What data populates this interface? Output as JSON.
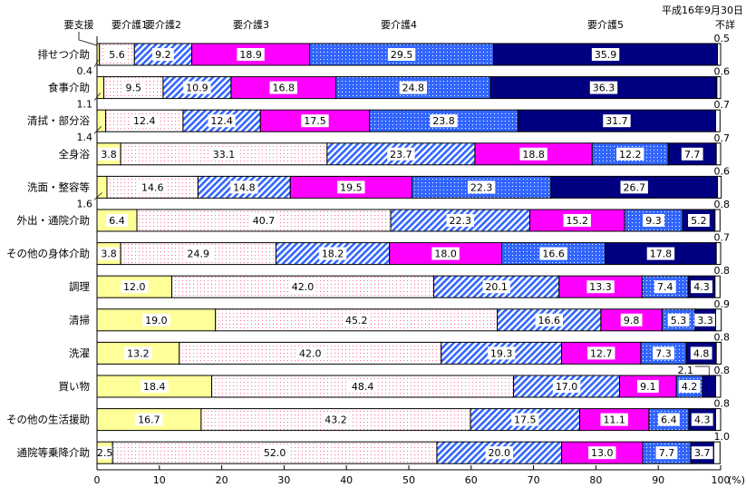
{
  "chart_data": {
    "type": "bar",
    "orientation": "horizontal",
    "stacked": true,
    "date_note": "平成16年9月30日",
    "xlabel_unit": "(%)",
    "xlim": [
      0,
      100
    ],
    "x_ticks": [
      "0",
      "10",
      "20",
      "30",
      "40",
      "50",
      "60",
      "70",
      "80",
      "90",
      "100"
    ],
    "categories": [
      "排せつ介助",
      "食事介助",
      "清拭・部分浴",
      "全身浴",
      "洗面・整容等",
      "外出・通院介助",
      "その他の身体介助",
      "調理",
      "清掃",
      "洗濯",
      "買い物",
      "その他の生活援助",
      "通院等乗降介助"
    ],
    "series": [
      {
        "name": "要支援",
        "color": "#ffff99",
        "values": [
          0.4,
          1.1,
          1.4,
          3.8,
          1.6,
          6.4,
          3.8,
          12.0,
          19.0,
          13.2,
          18.4,
          16.7,
          2.5
        ]
      },
      {
        "name": "要介護1",
        "color": "#ff99cc",
        "values": [
          5.6,
          9.5,
          12.4,
          33.1,
          14.6,
          40.7,
          24.9,
          42.0,
          45.2,
          42.0,
          48.4,
          43.2,
          52.0
        ]
      },
      {
        "name": "要介護2",
        "color": "#3366ff",
        "values": [
          9.2,
          10.9,
          12.4,
          23.7,
          14.8,
          22.3,
          18.2,
          20.1,
          16.6,
          19.3,
          17.0,
          17.5,
          20.0
        ]
      },
      {
        "name": "要介護3",
        "color": "#ff00ff",
        "values": [
          18.9,
          16.8,
          17.5,
          18.8,
          19.5,
          15.2,
          18.0,
          13.3,
          9.8,
          12.7,
          9.1,
          11.1,
          13.0
        ]
      },
      {
        "name": "要介護4",
        "color": "#3366ff",
        "values": [
          29.5,
          24.8,
          23.8,
          12.2,
          22.3,
          9.3,
          16.6,
          7.4,
          5.3,
          7.3,
          4.2,
          6.4,
          7.7
        ]
      },
      {
        "name": "要介護5",
        "color": "#000080",
        "values": [
          35.9,
          36.3,
          31.7,
          7.7,
          26.7,
          5.2,
          17.8,
          4.3,
          3.3,
          4.8,
          2.1,
          4.3,
          3.7
        ]
      },
      {
        "name": "不詳",
        "color": "#ffffff",
        "values": [
          0.5,
          0.6,
          0.7,
          0.7,
          0.6,
          0.8,
          0.7,
          0.8,
          0.9,
          0.8,
          0.8,
          0.8,
          1.0
        ]
      }
    ]
  }
}
